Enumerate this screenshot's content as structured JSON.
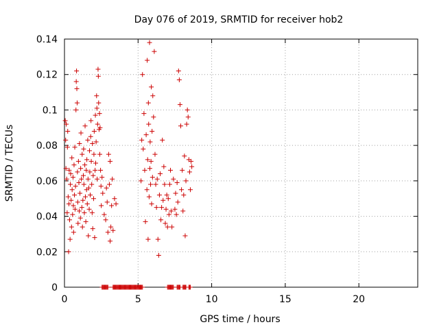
{
  "chart_data": {
    "type": "scatter",
    "title": "Day 076 of 2019, SRMTID for receiver hob2",
    "xlabel": "GPS time / hours",
    "ylabel": "SRMTID / TECUs",
    "xlim": [
      0,
      24
    ],
    "ylim": [
      0,
      0.14
    ],
    "x_ticks": [
      0,
      5,
      10,
      15,
      20
    ],
    "y_ticks": [
      0,
      0.02,
      0.04,
      0.06,
      0.08,
      0.1,
      0.12,
      0.14
    ],
    "x_tick_labels": [
      "0",
      "5",
      "10",
      "15",
      "20"
    ],
    "y_tick_labels": [
      "0",
      "0.02",
      "0.04",
      "0.06",
      "0.08",
      "0.1",
      "0.12",
      "0.14"
    ],
    "grid": true,
    "marker": "plus",
    "series": [
      {
        "name": "hob2",
        "color": "#cc0000",
        "points": [
          [
            0.05,
            0.094
          ],
          [
            0.08,
            0.083
          ],
          [
            0.1,
            0.067
          ],
          [
            0.12,
            0.092
          ],
          [
            0.15,
            0.061
          ],
          [
            0.18,
            0.042
          ],
          [
            0.2,
            0.079
          ],
          [
            0.22,
            0.088
          ],
          [
            0.25,
            0.051
          ],
          [
            0.28,
            0.02
          ],
          [
            0.3,
            0.047
          ],
          [
            0.32,
            0.066
          ],
          [
            0.35,
            0.038
          ],
          [
            0.38,
            0.027
          ],
          [
            0.4,
            0.058
          ],
          [
            0.42,
            0.064
          ],
          [
            0.45,
            0.049
          ],
          [
            0.48,
            0.034
          ],
          [
            0.5,
            0.073
          ],
          [
            0.52,
            0.055
          ],
          [
            0.55,
            0.041
          ],
          [
            0.58,
            0.062
          ],
          [
            0.6,
            0.046
          ],
          [
            0.62,
            0.031
          ],
          [
            0.65,
            0.069
          ],
          [
            0.68,
            0.052
          ],
          [
            0.7,
            0.079
          ],
          [
            0.72,
            0.044
          ],
          [
            0.75,
            0.057
          ],
          [
            0.78,
            0.1
          ],
          [
            0.8,
            0.116
          ],
          [
            0.82,
            0.122
          ],
          [
            0.84,
            0.112
          ],
          [
            0.86,
            0.104
          ],
          [
            0.88,
            0.065
          ],
          [
            0.9,
            0.048
          ],
          [
            0.92,
            0.036
          ],
          [
            0.95,
            0.071
          ],
          [
            0.98,
            0.059
          ],
          [
            1.0,
            0.043
          ],
          [
            1.02,
            0.081
          ],
          [
            1.05,
            0.053
          ],
          [
            1.08,
            0.039
          ],
          [
            1.1,
            0.067
          ],
          [
            1.12,
            0.087
          ],
          [
            1.15,
            0.061
          ],
          [
            1.18,
            0.045
          ],
          [
            1.2,
            0.075
          ],
          [
            1.22,
            0.034
          ],
          [
            1.25,
            0.049
          ],
          [
            1.28,
            0.063
          ],
          [
            1.3,
            0.078
          ],
          [
            1.32,
            0.058
          ],
          [
            1.35,
            0.042
          ],
          [
            1.38,
            0.069
          ],
          [
            1.4,
            0.091
          ],
          [
            1.42,
            0.051
          ],
          [
            1.45,
            0.037
          ],
          [
            1.48,
            0.066
          ],
          [
            1.5,
            0.055
          ],
          [
            1.52,
            0.072
          ],
          [
            1.55,
            0.047
          ],
          [
            1.58,
            0.083
          ],
          [
            1.6,
            0.061
          ],
          [
            1.62,
            0.029
          ],
          [
            1.65,
            0.056
          ],
          [
            1.68,
            0.044
          ],
          [
            1.7,
            0.077
          ],
          [
            1.72,
            0.065
          ],
          [
            1.75,
            0.052
          ],
          [
            1.78,
            0.085
          ],
          [
            1.8,
            0.094
          ],
          [
            1.82,
            0.071
          ],
          [
            1.85,
            0.058
          ],
          [
            1.88,
            0.042
          ],
          [
            1.9,
            0.081
          ],
          [
            1.92,
            0.033
          ],
          [
            1.95,
            0.063
          ],
          [
            1.98,
            0.05
          ],
          [
            2.0,
            0.075
          ],
          [
            2.02,
            0.088
          ],
          [
            2.05,
            0.028
          ],
          [
            2.08,
            0.066
          ],
          [
            2.1,
            0.097
          ],
          [
            2.12,
            0.07
          ],
          [
            2.15,
            0.082
          ],
          [
            2.18,
            0.108
          ],
          [
            2.2,
            0.101
          ],
          [
            2.22,
            0.061
          ],
          [
            2.25,
            0.092
          ],
          [
            2.28,
            0.123
          ],
          [
            2.3,
            0.119
          ],
          [
            2.32,
            0.104
          ],
          [
            2.35,
            0.089
          ],
          [
            2.38,
            0.098
          ],
          [
            2.4,
            0.075
          ],
          [
            2.42,
            0.09
          ],
          [
            2.45,
            0.066
          ],
          [
            2.48,
            0.057
          ],
          [
            2.5,
            0.046
          ],
          [
            2.55,
            0.062
          ],
          [
            2.6,
            0.053
          ],
          [
            2.7,
            0.041
          ],
          [
            2.8,
            0.038
          ],
          [
            2.85,
            0.056
          ],
          [
            2.9,
            0.048
          ],
          [
            2.95,
            0.031
          ],
          [
            3.0,
            0.075
          ],
          [
            3.05,
            0.058
          ],
          [
            3.1,
            0.071
          ],
          [
            3.1,
            0.026
          ],
          [
            3.15,
            0.034
          ],
          [
            3.2,
            0.046
          ],
          [
            3.25,
            0.061
          ],
          [
            3.3,
            0.032
          ],
          [
            3.4,
            0.05
          ],
          [
            3.5,
            0.047
          ],
          [
            5.2,
            0.06
          ],
          [
            5.25,
            0.083
          ],
          [
            5.3,
            0.12
          ],
          [
            5.35,
            0.078
          ],
          [
            5.4,
            0.098
          ],
          [
            5.45,
            0.066
          ],
          [
            5.5,
            0.037
          ],
          [
            5.55,
            0.086
          ],
          [
            5.6,
            0.055
          ],
          [
            5.62,
            0.128
          ],
          [
            5.65,
            0.072
          ],
          [
            5.68,
            0.027
          ],
          [
            5.7,
            0.104
          ],
          [
            5.72,
            0.092
          ],
          [
            5.75,
            0.051
          ],
          [
            5.78,
            0.138
          ],
          [
            5.8,
            0.067
          ],
          [
            5.82,
            0.082
          ],
          [
            5.85,
            0.058
          ],
          [
            5.88,
            0.071
          ],
          [
            5.9,
            0.113
          ],
          [
            5.92,
            0.047
          ],
          [
            5.95,
            0.088
          ],
          [
            5.98,
            0.062
          ],
          [
            6.0,
            0.108
          ],
          [
            6.05,
            0.096
          ],
          [
            6.1,
            0.133
          ],
          [
            6.15,
            0.075
          ],
          [
            6.2,
            0.058
          ],
          [
            6.25,
            0.045
          ],
          [
            6.3,
            0.061
          ],
          [
            6.35,
            0.027
          ],
          [
            6.4,
            0.018
          ],
          [
            6.45,
            0.052
          ],
          [
            6.5,
            0.064
          ],
          [
            6.55,
            0.038
          ],
          [
            6.6,
            0.045
          ],
          [
            6.65,
            0.083
          ],
          [
            6.7,
            0.049
          ],
          [
            6.75,
            0.068
          ],
          [
            6.8,
            0.058
          ],
          [
            6.85,
            0.036
          ],
          [
            6.9,
            0.044
          ],
          [
            6.95,
            0.052
          ],
          [
            7.0,
            0.034
          ],
          [
            7.05,
            0.05
          ],
          [
            7.1,
            0.041
          ],
          [
            7.15,
            0.058
          ],
          [
            7.2,
            0.066
          ],
          [
            7.25,
            0.043
          ],
          [
            7.3,
            0.034
          ],
          [
            7.4,
            0.061
          ],
          [
            7.5,
            0.044
          ],
          [
            7.55,
            0.053
          ],
          [
            7.6,
            0.041
          ],
          [
            7.65,
            0.059
          ],
          [
            7.7,
            0.048
          ],
          [
            7.75,
            0.122
          ],
          [
            7.8,
            0.117
          ],
          [
            7.85,
            0.103
          ],
          [
            7.9,
            0.091
          ],
          [
            7.95,
            0.055
          ],
          [
            8.0,
            0.066
          ],
          [
            8.05,
            0.043
          ],
          [
            8.1,
            0.052
          ],
          [
            8.15,
            0.074
          ],
          [
            8.2,
            0.029
          ],
          [
            8.25,
            0.06
          ],
          [
            8.3,
            0.092
          ],
          [
            8.35,
            0.1
          ],
          [
            8.4,
            0.096
          ],
          [
            8.45,
            0.072
          ],
          [
            8.5,
            0.065
          ],
          [
            8.55,
            0.055
          ],
          [
            8.6,
            0.071
          ],
          [
            8.65,
            0.068
          ]
        ]
      }
    ],
    "zero_runs": [
      [
        2.55,
        2.95
      ],
      [
        3.3,
        5.3
      ],
      [
        7.0,
        7.4
      ],
      [
        7.65,
        7.85
      ],
      [
        8.05,
        8.25
      ],
      [
        8.45,
        8.55
      ]
    ]
  }
}
